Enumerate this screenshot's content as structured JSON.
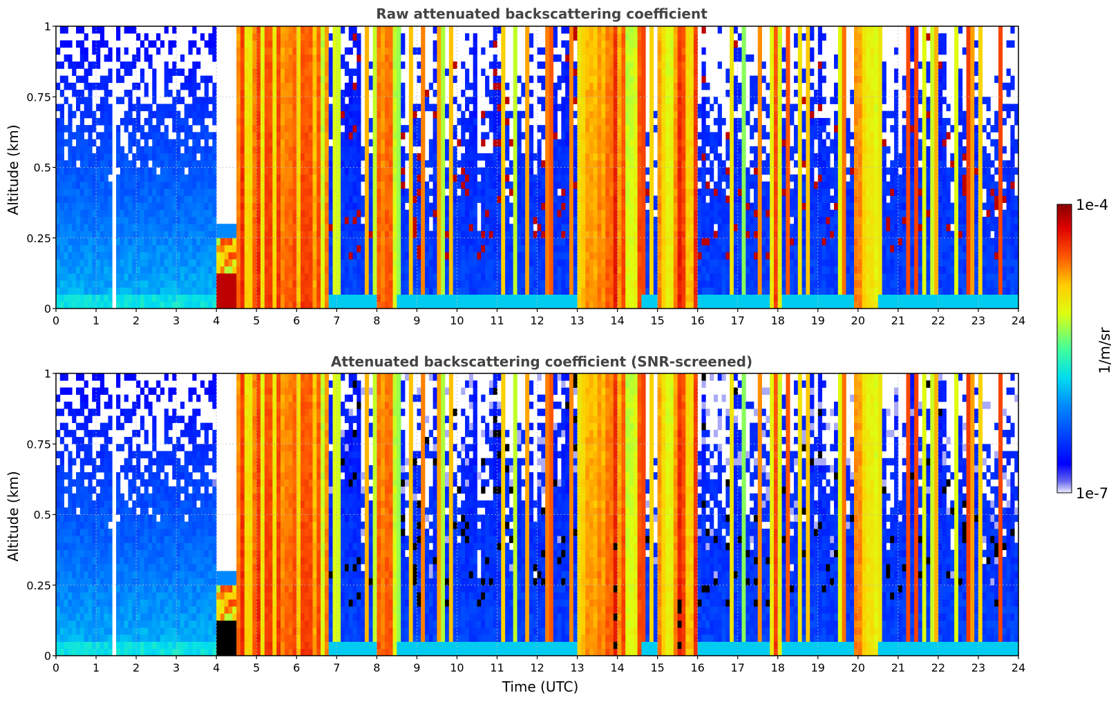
{
  "chart_data": [
    {
      "type": "heatmap",
      "title": "Raw attenuated backscattering coefficient",
      "xlabel": "",
      "ylabel": "Altitude (km)",
      "xlim": [
        0,
        24
      ],
      "ylim": [
        0,
        1
      ],
      "xticks": [
        "0",
        "1",
        "2",
        "3",
        "4",
        "5",
        "6",
        "7",
        "8",
        "9",
        "10",
        "11",
        "12",
        "13",
        "14",
        "15",
        "16",
        "17",
        "18",
        "19",
        "20",
        "21",
        "22",
        "23",
        "24"
      ],
      "yticks": [
        "0",
        "0.25",
        "0.5",
        "0.75",
        "1"
      ],
      "grid": true,
      "screened": false,
      "time_segments_utc": [
        {
          "start": 0.0,
          "end": 1.4,
          "regime": "clear-noisy"
        },
        {
          "start": 1.4,
          "end": 1.5,
          "regime": "no-data"
        },
        {
          "start": 1.5,
          "end": 4.0,
          "regime": "clear-noisy"
        },
        {
          "start": 4.0,
          "end": 4.5,
          "regime": "low-cloud"
        },
        {
          "start": 4.5,
          "end": 6.8,
          "regime": "deep-cloud"
        },
        {
          "start": 6.8,
          "end": 8.0,
          "regime": "broken-cloud"
        },
        {
          "start": 8.0,
          "end": 8.5,
          "regime": "deep-cloud"
        },
        {
          "start": 8.5,
          "end": 10.6,
          "regime": "broken-cloud"
        },
        {
          "start": 10.6,
          "end": 13.0,
          "regime": "broken-cloud"
        },
        {
          "start": 13.0,
          "end": 14.6,
          "regime": "deep-cloud"
        },
        {
          "start": 14.6,
          "end": 15.0,
          "regime": "broken-cloud"
        },
        {
          "start": 15.0,
          "end": 16.0,
          "regime": "deep-cloud"
        },
        {
          "start": 16.0,
          "end": 17.8,
          "regime": "broken-cloud"
        },
        {
          "start": 17.8,
          "end": 18.1,
          "regime": "deep-cloud"
        },
        {
          "start": 18.1,
          "end": 19.9,
          "regime": "broken-cloud"
        },
        {
          "start": 19.9,
          "end": 20.5,
          "regime": "deep-cloud"
        },
        {
          "start": 20.5,
          "end": 24.0,
          "regime": "broken-cloud"
        }
      ]
    },
    {
      "type": "heatmap",
      "title": "Attenuated backscattering coefficient (SNR-screened)",
      "xlabel": "Time (UTC)",
      "ylabel": "Altitude (km)",
      "xlim": [
        0,
        24
      ],
      "ylim": [
        0,
        1
      ],
      "xticks": [
        "0",
        "1",
        "2",
        "3",
        "4",
        "5",
        "6",
        "7",
        "8",
        "9",
        "10",
        "11",
        "12",
        "13",
        "14",
        "15",
        "16",
        "17",
        "18",
        "19",
        "20",
        "21",
        "22",
        "23",
        "24"
      ],
      "yticks": [
        "0",
        "0.25",
        "0.5",
        "0.75",
        "1"
      ],
      "grid": true,
      "screened": true
    }
  ],
  "colorbar": {
    "label": "1/m/sr",
    "max_label": "1e-4",
    "min_label": "1e-7",
    "scale": "log",
    "range": [
      1e-07,
      0.0001
    ],
    "colormap": "jet"
  }
}
